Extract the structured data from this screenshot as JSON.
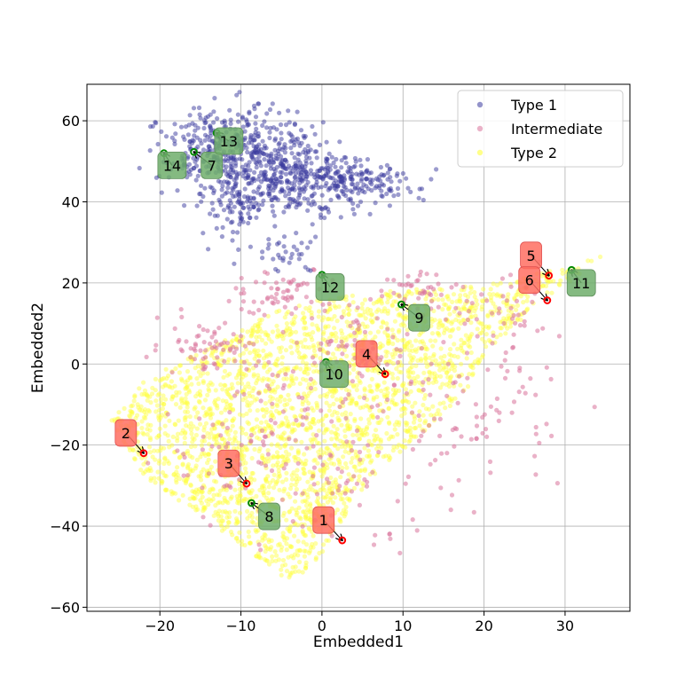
{
  "chart_data": {
    "type": "scatter",
    "title": "",
    "xlabel": "Embedded1",
    "ylabel": "Embedded2",
    "xlim": [
      -29,
      38
    ],
    "ylim": [
      -61,
      69
    ],
    "xticks": [
      -20,
      -10,
      0,
      10,
      20,
      30
    ],
    "yticks": [
      -60,
      -40,
      -20,
      0,
      20,
      40,
      60
    ],
    "xtick_labels": [
      "−20",
      "−10",
      "0",
      "10",
      "20",
      "30"
    ],
    "ytick_labels": [
      "−60",
      "−40",
      "−20",
      "0",
      "20",
      "40",
      "60"
    ],
    "grid": true,
    "legend_position": "top-right",
    "series": [
      {
        "name": "Type 1",
        "color": "#3a3a9e",
        "approx_count": 900
      },
      {
        "name": "Intermediate",
        "color": "#d9739a",
        "approx_count": 500
      },
      {
        "name": "Type 2",
        "color": "#ffff3a",
        "approx_count": 2600
      }
    ],
    "annotations": [
      {
        "label": "1",
        "group": "red",
        "point": [
          2.5,
          -43.5
        ],
        "text_at": [
          0.2,
          -38.5
        ]
      },
      {
        "label": "2",
        "group": "red",
        "point": [
          -22.0,
          -22.0
        ],
        "text_at": [
          -24.2,
          -17.0
        ]
      },
      {
        "label": "3",
        "group": "red",
        "point": [
          -9.3,
          -29.5
        ],
        "text_at": [
          -11.5,
          -24.5
        ]
      },
      {
        "label": "4",
        "group": "red",
        "point": [
          7.8,
          -2.5
        ],
        "text_at": [
          5.5,
          2.5
        ]
      },
      {
        "label": "5",
        "group": "red",
        "point": [
          28.0,
          21.8
        ],
        "text_at": [
          25.8,
          26.8
        ]
      },
      {
        "label": "6",
        "group": "red",
        "point": [
          27.8,
          15.7
        ],
        "text_at": [
          25.6,
          20.7
        ]
      },
      {
        "label": "7",
        "group": "green",
        "point": [
          -15.8,
          52.3
        ],
        "text_at": [
          -13.6,
          49.0
        ]
      },
      {
        "label": "8",
        "group": "green",
        "point": [
          -8.7,
          -34.3
        ],
        "text_at": [
          -6.5,
          -37.6
        ]
      },
      {
        "label": "9",
        "group": "green",
        "point": [
          9.8,
          14.7
        ],
        "text_at": [
          12.0,
          11.4
        ]
      },
      {
        "label": "10",
        "group": "green",
        "point": [
          0.5,
          0.5
        ],
        "text_at": [
          1.5,
          -2.5
        ]
      },
      {
        "label": "11",
        "group": "green",
        "point": [
          30.8,
          23.2
        ],
        "text_at": [
          32.0,
          20.0
        ]
      },
      {
        "label": "12",
        "group": "green",
        "point": [
          0.0,
          22.0
        ],
        "text_at": [
          1.0,
          19.0
        ]
      },
      {
        "label": "13",
        "group": "green",
        "point": [
          -13.0,
          57.0
        ],
        "text_at": [
          -11.5,
          55.0
        ]
      },
      {
        "label": "14",
        "group": "green",
        "point": [
          -19.5,
          52.0
        ],
        "text_at": [
          -18.5,
          49.0
        ]
      }
    ]
  }
}
